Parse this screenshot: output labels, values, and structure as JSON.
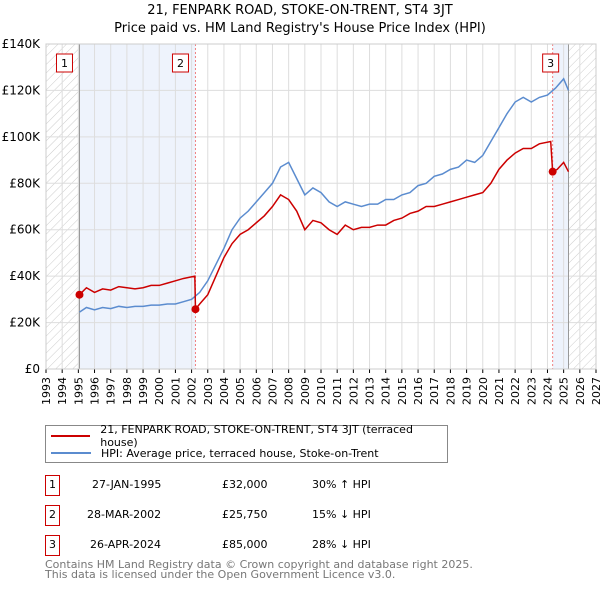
{
  "title": "21, FENPARK ROAD, STOKE-ON-TRENT, ST4 3JT",
  "subtitle": "Price paid vs. HM Land Registry's House Price Index (HPI)",
  "chart_data": {
    "type": "line",
    "xlim": [
      1993,
      2027
    ],
    "ylim": [
      0,
      140000
    ],
    "x_ticks": [
      1993,
      1994,
      1995,
      1996,
      1997,
      1998,
      1999,
      2000,
      2001,
      2002,
      2003,
      2004,
      2005,
      2006,
      2007,
      2008,
      2009,
      2010,
      2011,
      2012,
      2013,
      2014,
      2015,
      2016,
      2017,
      2018,
      2019,
      2020,
      2021,
      2022,
      2023,
      2024,
      2025,
      2026,
      2027
    ],
    "y_ticks": [
      {
        "v": 0,
        "label": "£0"
      },
      {
        "v": 20000,
        "label": "£20K"
      },
      {
        "v": 40000,
        "label": "£40K"
      },
      {
        "v": 60000,
        "label": "£60K"
      },
      {
        "v": 80000,
        "label": "£80K"
      },
      {
        "v": 100000,
        "label": "£100K"
      },
      {
        "v": 120000,
        "label": "£120K"
      },
      {
        "v": 140000,
        "label": "£140K"
      }
    ],
    "series": [
      {
        "name": "21, FENPARK ROAD, STOKE-ON-TRENT, ST4 3JT (terraced house)",
        "color": "#cc0000",
        "x": [
          1995.07,
          1995.5,
          1996,
          1996.5,
          1997,
          1997.5,
          1998,
          1998.5,
          1999,
          1999.5,
          2000,
          2000.5,
          2001,
          2001.5,
          2002.2,
          2002.24,
          2002.5,
          2003,
          2003.5,
          2004,
          2004.5,
          2005,
          2005.5,
          2006,
          2006.5,
          2007,
          2007.5,
          2008,
          2008.5,
          2009,
          2009.5,
          2010,
          2010.5,
          2011,
          2011.5,
          2012,
          2012.5,
          2013,
          2013.5,
          2014,
          2014.5,
          2015,
          2015.5,
          2016,
          2016.5,
          2017,
          2017.5,
          2018,
          2018.5,
          2019,
          2019.5,
          2020,
          2020.5,
          2021,
          2021.5,
          2022,
          2022.5,
          2023,
          2023.5,
          2024.2,
          2024.32,
          2024.6,
          2025,
          2025.3
        ],
        "y": [
          32000,
          35000,
          33000,
          34500,
          34000,
          35500,
          35000,
          34500,
          35000,
          36000,
          36000,
          37000,
          38000,
          39000,
          40000,
          25750,
          28000,
          32000,
          40000,
          48000,
          54000,
          58000,
          60000,
          63000,
          66000,
          70000,
          75000,
          73000,
          68000,
          60000,
          64000,
          63000,
          60000,
          58000,
          62000,
          60000,
          61000,
          61000,
          62000,
          62000,
          64000,
          65000,
          67000,
          68000,
          70000,
          70000,
          71000,
          72000,
          73000,
          74000,
          75000,
          76000,
          80000,
          86000,
          90000,
          93000,
          95000,
          95000,
          97000,
          98000,
          85000,
          86000,
          89000,
          85000
        ]
      },
      {
        "name": "HPI: Average price, terraced house, Stoke-on-Trent",
        "color": "#5b8ccf",
        "x": [
          1995.07,
          1995.5,
          1996,
          1996.5,
          1997,
          1997.5,
          1998,
          1998.5,
          1999,
          1999.5,
          2000,
          2000.5,
          2001,
          2001.5,
          2002,
          2002.5,
          2003,
          2003.5,
          2004,
          2004.5,
          2005,
          2005.5,
          2006,
          2006.5,
          2007,
          2007.5,
          2008,
          2008.5,
          2009,
          2009.5,
          2010,
          2010.5,
          2011,
          2011.5,
          2012,
          2012.5,
          2013,
          2013.5,
          2014,
          2014.5,
          2015,
          2015.5,
          2016,
          2016.5,
          2017,
          2017.5,
          2018,
          2018.5,
          2019,
          2019.5,
          2020,
          2020.5,
          2021,
          2021.5,
          2022,
          2022.5,
          2023,
          2023.5,
          2024,
          2024.5,
          2025,
          2025.3
        ],
        "y": [
          24500,
          26500,
          25500,
          26500,
          26000,
          27000,
          26500,
          27000,
          27000,
          27500,
          27500,
          28000,
          28000,
          29000,
          30000,
          33000,
          38000,
          45000,
          52000,
          60000,
          65000,
          68000,
          72000,
          76000,
          80000,
          87000,
          89000,
          82000,
          75000,
          78000,
          76000,
          72000,
          70000,
          72000,
          71000,
          70000,
          71000,
          71000,
          73000,
          73000,
          75000,
          76000,
          79000,
          80000,
          83000,
          84000,
          86000,
          87000,
          90000,
          89000,
          92000,
          98000,
          104000,
          110000,
          115000,
          117000,
          115000,
          117000,
          118000,
          121000,
          125000,
          120000
        ]
      }
    ],
    "sales": [
      {
        "label": "1",
        "x": 1995.07,
        "y": 32000,
        "date": "27-JAN-1995",
        "price": "£32,000",
        "hpi": "30% ↑ HPI"
      },
      {
        "label": "2",
        "x": 2002.24,
        "y": 25750,
        "date": "28-MAR-2002",
        "price": "£25,750",
        "hpi": "15% ↓ HPI"
      },
      {
        "label": "3",
        "x": 2024.32,
        "y": 85000,
        "date": "26-APR-2024",
        "price": "£85,000",
        "hpi": "28% ↓ HPI"
      }
    ],
    "data_end": 2025.3
  },
  "footer": [
    "Contains HM Land Registry data © Crown copyright and database right 2025.",
    "This data is licensed under the Open Government Licence v3.0."
  ]
}
